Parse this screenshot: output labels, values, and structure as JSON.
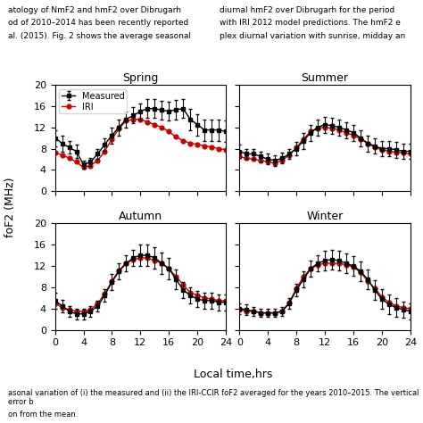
{
  "chart_data": [
    {
      "type": "line",
      "title": "Spring",
      "x": [
        0,
        1,
        2,
        3,
        4,
        5,
        6,
        7,
        8,
        9,
        10,
        11,
        12,
        13,
        14,
        15,
        16,
        17,
        18,
        19,
        20,
        21,
        22,
        23,
        24
      ],
      "xlim": [
        0,
        24
      ],
      "xticks": [
        0,
        4,
        8,
        12,
        16,
        20,
        24
      ],
      "ylim": [
        0,
        20
      ],
      "yticks": [
        0,
        4,
        8,
        12,
        16,
        20
      ],
      "tick_labels": "y",
      "legend": "upper left",
      "series": [
        {
          "name": "Measured",
          "color": "#000000",
          "marker": "s",
          "line_style": "solid",
          "values": [
            10.0,
            9.0,
            8.2,
            7.5,
            5.0,
            5.5,
            7.0,
            8.8,
            10.5,
            12.0,
            13.5,
            14.2,
            15.0,
            15.5,
            15.5,
            15.2,
            15.0,
            15.3,
            15.5,
            13.5,
            12.5,
            11.5,
            11.5,
            11.5,
            11.2
          ],
          "errors": [
            1.5,
            1.5,
            1.2,
            1.2,
            0.8,
            0.8,
            1.0,
            1.2,
            1.5,
            1.5,
            1.5,
            1.5,
            1.5,
            1.8,
            1.8,
            1.8,
            1.8,
            1.8,
            1.8,
            2.0,
            2.0,
            2.0,
            2.0,
            2.0,
            2.0
          ]
        },
        {
          "name": "IRI",
          "color": "#cc0000",
          "marker": "o",
          "line_style": "solid",
          "values": [
            7.2,
            6.8,
            6.2,
            5.5,
            4.5,
            4.8,
            5.8,
            7.5,
            9.8,
            11.8,
            13.2,
            13.5,
            13.5,
            13.0,
            12.5,
            12.0,
            11.2,
            10.2,
            9.5,
            9.0,
            8.8,
            8.5,
            8.3,
            8.0,
            7.8
          ]
        }
      ]
    },
    {
      "type": "line",
      "title": "Summer",
      "x": [
        0,
        1,
        2,
        3,
        4,
        5,
        6,
        7,
        8,
        9,
        10,
        11,
        12,
        13,
        14,
        15,
        16,
        17,
        18,
        19,
        20,
        21,
        22,
        23,
        24
      ],
      "xlim": [
        0,
        24
      ],
      "xticks": [
        0,
        4,
        8,
        12,
        16,
        20,
        24
      ],
      "ylim": [
        0,
        20
      ],
      "yticks": [
        0,
        4,
        8,
        12,
        16,
        20
      ],
      "tick_labels": false,
      "series": [
        {
          "name": "Measured",
          "color": "#000000",
          "marker": "s",
          "line_style": "solid",
          "values": [
            7.5,
            7.0,
            7.0,
            6.5,
            6.0,
            5.8,
            6.2,
            7.0,
            8.0,
            9.5,
            11.0,
            12.0,
            12.5,
            12.3,
            12.0,
            11.5,
            11.0,
            10.0,
            9.0,
            8.5,
            8.0,
            8.0,
            7.8,
            7.5,
            7.5
          ],
          "errors": [
            1.2,
            1.0,
            1.0,
            1.0,
            1.0,
            1.0,
            1.0,
            1.0,
            1.2,
            1.5,
            1.5,
            1.5,
            1.5,
            1.5,
            1.5,
            1.5,
            1.5,
            1.5,
            1.5,
            1.5,
            1.5,
            1.5,
            1.5,
            1.5,
            1.5
          ]
        },
        {
          "name": "IRI",
          "color": "#cc0000",
          "marker": "o",
          "line_style": "solid",
          "values": [
            6.5,
            6.2,
            6.0,
            5.8,
            5.5,
            5.3,
            5.8,
            6.8,
            8.2,
            9.8,
            11.2,
            11.8,
            12.0,
            11.8,
            11.5,
            11.0,
            10.5,
            9.8,
            9.0,
            8.2,
            7.8,
            7.5,
            7.3,
            7.2,
            7.0
          ]
        }
      ]
    },
    {
      "type": "line",
      "title": "Autumn",
      "x": [
        0,
        1,
        2,
        3,
        4,
        5,
        6,
        7,
        8,
        9,
        10,
        11,
        12,
        13,
        14,
        15,
        16,
        17,
        18,
        19,
        20,
        21,
        22,
        23,
        24
      ],
      "xlim": [
        0,
        24
      ],
      "xticks": [
        0,
        4,
        8,
        12,
        16,
        20,
        24
      ],
      "ylim": [
        0,
        20
      ],
      "yticks": [
        0,
        4,
        8,
        12,
        16,
        20
      ],
      "series": [
        {
          "name": "Measured",
          "color": "#000000",
          "marker": "s",
          "line_style": "solid",
          "values": [
            5.5,
            4.5,
            3.5,
            3.0,
            3.0,
            3.5,
            4.5,
            6.5,
            9.0,
            11.0,
            12.5,
            13.5,
            14.0,
            14.0,
            13.5,
            12.5,
            11.5,
            9.5,
            7.5,
            6.5,
            5.8,
            5.5,
            5.5,
            5.2,
            5.2
          ],
          "errors": [
            1.5,
            1.2,
            1.0,
            1.0,
            1.0,
            1.0,
            1.0,
            1.2,
            1.5,
            1.5,
            1.5,
            1.5,
            2.0,
            2.0,
            2.0,
            2.0,
            2.0,
            1.8,
            1.5,
            1.5,
            1.5,
            1.5,
            1.5,
            1.5,
            1.5
          ]
        },
        {
          "name": "IRI",
          "color": "#cc0000",
          "marker": "o",
          "line_style": "solid",
          "values": [
            5.0,
            4.2,
            3.8,
            3.5,
            3.5,
            3.8,
            5.0,
            6.8,
            9.2,
            11.2,
            12.5,
            13.2,
            13.5,
            13.5,
            13.0,
            12.5,
            11.5,
            10.0,
            8.5,
            7.0,
            6.5,
            6.0,
            5.8,
            5.5,
            5.5
          ]
        }
      ]
    },
    {
      "type": "line",
      "title": "Winter",
      "x": [
        0,
        1,
        2,
        3,
        4,
        5,
        6,
        7,
        8,
        9,
        10,
        11,
        12,
        13,
        14,
        15,
        16,
        17,
        18,
        19,
        20,
        21,
        22,
        23,
        24
      ],
      "xlim": [
        0,
        24
      ],
      "xticks": [
        0,
        4,
        8,
        12,
        16,
        20,
        24
      ],
      "ylim": [
        0,
        20
      ],
      "yticks": [
        0,
        4,
        8,
        12,
        16,
        20
      ],
      "tick_labels": "x",
      "series": [
        {
          "name": "Measured",
          "color": "#000000",
          "marker": "s",
          "line_style": "solid",
          "values": [
            4.0,
            3.8,
            3.5,
            3.2,
            3.2,
            3.2,
            3.5,
            5.0,
            7.5,
            9.5,
            11.5,
            12.5,
            13.0,
            13.2,
            13.0,
            12.5,
            12.0,
            11.0,
            9.5,
            7.5,
            5.8,
            4.8,
            4.2,
            3.8,
            3.5
          ],
          "errors": [
            1.0,
            1.0,
            0.8,
            0.8,
            0.8,
            0.8,
            0.8,
            1.0,
            1.2,
            1.5,
            1.5,
            1.5,
            1.8,
            1.8,
            1.8,
            1.8,
            1.8,
            1.8,
            1.8,
            1.8,
            1.8,
            1.8,
            1.8,
            1.5,
            1.5
          ]
        },
        {
          "name": "IRI",
          "color": "#cc0000",
          "marker": "o",
          "line_style": "solid",
          "values": [
            3.8,
            3.5,
            3.5,
            3.2,
            3.2,
            3.2,
            3.5,
            5.2,
            7.8,
            10.0,
            11.5,
            12.2,
            12.5,
            12.5,
            12.5,
            12.2,
            11.8,
            10.8,
            9.2,
            7.8,
            6.2,
            5.2,
            4.5,
            4.2,
            4.0
          ]
        }
      ]
    }
  ],
  "xlabel": "Local time,hrs",
  "ylabel": "foF2 (MHz)",
  "annotations": {
    "left": [
      "atology of NmF2 and hmF2 over Dibrugarh",
      "od of 2010–2014 has been recently reported",
      "al. (2015). Fig. 2 shows the average seasonal"
    ],
    "right": [
      "diurnal hmF2 over Dibrugarh for the period",
      "with IRI 2012 model predictions. The hmF2 e",
      "plex diurnal variation with sunrise, midday an"
    ],
    "caption": [
      "asonal variation of (i) the measured and (ii) the IRI-CCIR foF2 averaged for the years 2010–2015. The vertical error b",
      "on from the mean."
    ]
  }
}
